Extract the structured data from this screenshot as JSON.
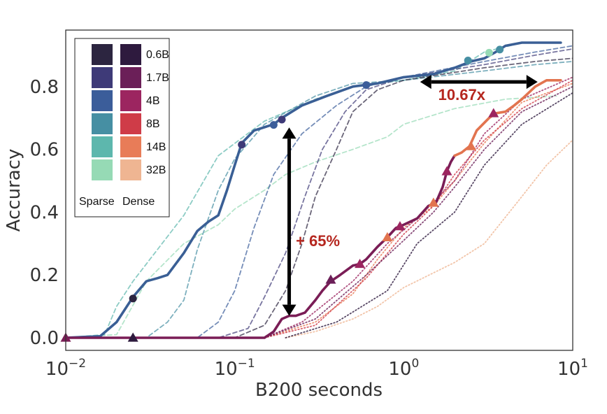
{
  "chart_data": {
    "type": "line",
    "xlabel": "B200 seconds",
    "ylabel": "Accuracy",
    "xscale": "log",
    "xlim": [
      0.01,
      10
    ],
    "ylim": [
      -0.04,
      0.98
    ],
    "xticks": [
      {
        "v": 0.01,
        "base": "10",
        "exp": "−2"
      },
      {
        "v": 0.1,
        "base": "10",
        "exp": "−1"
      },
      {
        "v": 1,
        "base": "10",
        "exp": "0"
      },
      {
        "v": 10,
        "base": "10",
        "exp": "1"
      }
    ],
    "yticks": [
      {
        "v": 0,
        "label": "0.0"
      },
      {
        "v": 0.2,
        "label": "0.2"
      },
      {
        "v": 0.4,
        "label": "0.4"
      },
      {
        "v": 0.6,
        "label": "0.6"
      },
      {
        "v": 0.8,
        "label": "0.8"
      }
    ],
    "grid": false,
    "legend": {
      "placement": "top-left",
      "sizes": [
        "0.6B",
        "1.7B",
        "4B",
        "8B",
        "14B",
        "32B"
      ],
      "sparse_label": "Sparse",
      "dense_label": "Dense",
      "sparse_colors": [
        "#2c2540",
        "#3e3a78",
        "#3b5d9a",
        "#468fa3",
        "#5db7ad",
        "#96dab5"
      ],
      "dense_colors": [
        "#2e1a3e",
        "#6b1f58",
        "#9c2560",
        "#cf3c48",
        "#e87c58",
        "#efb592"
      ],
      "sparse_label_color": "#2e6aa8",
      "dense_label_color": "#b5271f"
    },
    "series": [
      {
        "group": "sparse",
        "style": "dashed",
        "color": "#96dab5",
        "points": [
          [
            0.01,
            0
          ],
          [
            0.02,
            0.01
          ],
          [
            0.03,
            0.18
          ],
          [
            0.05,
            0.3
          ],
          [
            0.08,
            0.36
          ],
          [
            0.1,
            0.41
          ],
          [
            0.15,
            0.47
          ],
          [
            0.2,
            0.52
          ],
          [
            0.3,
            0.56
          ],
          [
            0.5,
            0.6
          ],
          [
            0.8,
            0.64
          ],
          [
            1,
            0.68
          ],
          [
            2,
            0.73
          ],
          [
            4,
            0.76
          ],
          [
            8,
            0.77
          ]
        ]
      },
      {
        "group": "sparse",
        "style": "dashed",
        "color": "#5db7ad",
        "points": [
          [
            0.01,
            0
          ],
          [
            0.017,
            0.01
          ],
          [
            0.02,
            0.1
          ],
          [
            0.025,
            0.18
          ],
          [
            0.05,
            0.39
          ],
          [
            0.08,
            0.58
          ],
          [
            0.15,
            0.69
          ],
          [
            0.3,
            0.76
          ],
          [
            0.5,
            0.8
          ],
          [
            1,
            0.82
          ],
          [
            2,
            0.85
          ],
          [
            3,
            0.91
          ],
          [
            5,
            0.94
          ],
          [
            8,
            0.94
          ]
        ]
      },
      {
        "group": "sparse",
        "style": "dashed",
        "color": "#468fa3",
        "points": [
          [
            0.01,
            0
          ],
          [
            0.03,
            0
          ],
          [
            0.04,
            0.05
          ],
          [
            0.05,
            0.12
          ],
          [
            0.06,
            0.28
          ],
          [
            0.08,
            0.47
          ],
          [
            0.1,
            0.57
          ],
          [
            0.15,
            0.68
          ],
          [
            0.3,
            0.77
          ],
          [
            0.5,
            0.81
          ],
          [
            1,
            0.82
          ],
          [
            3,
            0.85
          ],
          [
            6,
            0.87
          ],
          [
            10,
            0.88
          ]
        ]
      },
      {
        "group": "sparse",
        "style": "dashed",
        "color": "#3b5d9a",
        "points": [
          [
            0.01,
            0
          ],
          [
            0.06,
            0
          ],
          [
            0.08,
            0.05
          ],
          [
            0.1,
            0.15
          ],
          [
            0.13,
            0.35
          ],
          [
            0.17,
            0.52
          ],
          [
            0.25,
            0.65
          ],
          [
            0.4,
            0.74
          ],
          [
            0.6,
            0.8
          ],
          [
            1,
            0.83
          ],
          [
            3,
            0.88
          ],
          [
            6,
            0.91
          ],
          [
            10,
            0.93
          ]
        ]
      },
      {
        "group": "sparse",
        "style": "dashed",
        "color": "#3e3a78",
        "points": [
          [
            0.01,
            0
          ],
          [
            0.08,
            0
          ],
          [
            0.12,
            0.03
          ],
          [
            0.15,
            0.13
          ],
          [
            0.2,
            0.27
          ],
          [
            0.26,
            0.45
          ],
          [
            0.33,
            0.6
          ],
          [
            0.45,
            0.72
          ],
          [
            0.6,
            0.79
          ],
          [
            1,
            0.83
          ],
          [
            3,
            0.87
          ],
          [
            6,
            0.9
          ],
          [
            10,
            0.92
          ]
        ]
      },
      {
        "group": "sparse",
        "style": "dashed",
        "color": "#2c2540",
        "points": [
          [
            0.01,
            0
          ],
          [
            0.1,
            0
          ],
          [
            0.15,
            0.04
          ],
          [
            0.2,
            0.15
          ],
          [
            0.25,
            0.3
          ],
          [
            0.3,
            0.45
          ],
          [
            0.4,
            0.6
          ],
          [
            0.5,
            0.72
          ],
          [
            0.7,
            0.79
          ],
          [
            1,
            0.82
          ],
          [
            3,
            0.86
          ],
          [
            6,
            0.88
          ],
          [
            10,
            0.89
          ]
        ]
      },
      {
        "group": "sparse",
        "style": "solid",
        "color": "#3a5f95",
        "points": [
          [
            0.01,
            0
          ],
          [
            0.016,
            0.005
          ],
          [
            0.02,
            0.05
          ],
          [
            0.025,
            0.13
          ],
          [
            0.03,
            0.18
          ],
          [
            0.035,
            0.19
          ],
          [
            0.04,
            0.2
          ],
          [
            0.05,
            0.27
          ],
          [
            0.06,
            0.34
          ],
          [
            0.07,
            0.37
          ],
          [
            0.08,
            0.39
          ],
          [
            0.09,
            0.47
          ],
          [
            0.1,
            0.55
          ],
          [
            0.11,
            0.62
          ],
          [
            0.13,
            0.66
          ],
          [
            0.17,
            0.68
          ],
          [
            0.19,
            0.7
          ],
          [
            0.25,
            0.74
          ],
          [
            0.35,
            0.77
          ],
          [
            0.5,
            0.8
          ],
          [
            0.7,
            0.81
          ],
          [
            1,
            0.83
          ],
          [
            1.5,
            0.84
          ],
          [
            2,
            0.86
          ],
          [
            2.5,
            0.88
          ],
          [
            3,
            0.89
          ],
          [
            3.5,
            0.91
          ],
          [
            4,
            0.93
          ],
          [
            5,
            0.94
          ],
          [
            8.5,
            0.94
          ]
        ]
      },
      {
        "group": "dense",
        "style": "dotted",
        "color": "#efb592",
        "points": [
          [
            0.2,
            0
          ],
          [
            0.3,
            0.02
          ],
          [
            0.5,
            0.06
          ],
          [
            0.7,
            0.1
          ],
          [
            1,
            0.16
          ],
          [
            2,
            0.24
          ],
          [
            3,
            0.3
          ],
          [
            5,
            0.45
          ],
          [
            7,
            0.55
          ],
          [
            10,
            0.63
          ]
        ]
      },
      {
        "group": "dense",
        "style": "dotted",
        "color": "#e87c58",
        "points": [
          [
            0.15,
            0
          ],
          [
            0.3,
            0.05
          ],
          [
            0.5,
            0.14
          ],
          [
            0.7,
            0.25
          ],
          [
            1,
            0.35
          ],
          [
            1.5,
            0.42
          ],
          [
            2,
            0.5
          ],
          [
            3,
            0.62
          ],
          [
            5,
            0.75
          ],
          [
            10,
            0.81
          ]
        ]
      },
      {
        "group": "dense",
        "style": "dotted",
        "color": "#cf3c48",
        "points": [
          [
            0.15,
            0
          ],
          [
            0.3,
            0.04
          ],
          [
            0.6,
            0.19
          ],
          [
            1,
            0.33
          ],
          [
            1.5,
            0.42
          ],
          [
            2,
            0.52
          ],
          [
            3,
            0.63
          ],
          [
            5,
            0.73
          ],
          [
            10,
            0.82
          ]
        ]
      },
      {
        "group": "dense",
        "style": "dotted",
        "color": "#9c2560",
        "points": [
          [
            0.15,
            0
          ],
          [
            0.25,
            0.05
          ],
          [
            0.5,
            0.18
          ],
          [
            0.8,
            0.3
          ],
          [
            1.2,
            0.38
          ],
          [
            2,
            0.5
          ],
          [
            3,
            0.65
          ],
          [
            5,
            0.76
          ],
          [
            10,
            0.83
          ]
        ]
      },
      {
        "group": "dense",
        "style": "dotted",
        "color": "#6b1f58",
        "points": [
          [
            0.15,
            0
          ],
          [
            0.3,
            0.06
          ],
          [
            0.6,
            0.2
          ],
          [
            1,
            0.31
          ],
          [
            1.5,
            0.4
          ],
          [
            2,
            0.48
          ],
          [
            3,
            0.6
          ],
          [
            5,
            0.72
          ],
          [
            10,
            0.8
          ]
        ]
      },
      {
        "group": "dense",
        "style": "dotted",
        "color": "#2e1a3e",
        "points": [
          [
            0.2,
            0
          ],
          [
            0.4,
            0.05
          ],
          [
            0.8,
            0.15
          ],
          [
            1.2,
            0.3
          ],
          [
            2,
            0.4
          ],
          [
            3,
            0.55
          ],
          [
            5,
            0.68
          ],
          [
            10,
            0.78
          ]
        ]
      },
      {
        "group": "dense",
        "style": "solid",
        "color": "#7a1d56",
        "points": [
          [
            0.01,
            0
          ],
          [
            0.15,
            0
          ],
          [
            0.17,
            0.02
          ],
          [
            0.19,
            0.06
          ],
          [
            0.21,
            0.07
          ],
          [
            0.23,
            0.07
          ],
          [
            0.26,
            0.08
          ],
          [
            0.3,
            0.12
          ],
          [
            0.33,
            0.15
          ],
          [
            0.37,
            0.18
          ],
          [
            0.42,
            0.2
          ],
          [
            0.5,
            0.23
          ],
          [
            0.55,
            0.235
          ],
          [
            0.6,
            0.25
          ],
          [
            0.7,
            0.29
          ],
          [
            0.8,
            0.32
          ],
          [
            0.9,
            0.35
          ],
          [
            1.0,
            0.36
          ],
          [
            1.2,
            0.38
          ],
          [
            1.4,
            0.42
          ],
          [
            1.55,
            0.43
          ],
          [
            1.7,
            0.48
          ],
          [
            1.8,
            0.53
          ],
          [
            1.9,
            0.56
          ],
          [
            2.0,
            0.58
          ]
        ]
      },
      {
        "group": "dense",
        "style": "solid",
        "color": "#e2744f",
        "points": [
          [
            2.0,
            0.58
          ],
          [
            2.2,
            0.59
          ],
          [
            2.45,
            0.61
          ],
          [
            2.7,
            0.66
          ],
          [
            3.2,
            0.7
          ],
          [
            3.5,
            0.715
          ],
          [
            4,
            0.72
          ],
          [
            4.5,
            0.74
          ],
          [
            5,
            0.76
          ],
          [
            6,
            0.8
          ],
          [
            7,
            0.82
          ],
          [
            8.5,
            0.82
          ]
        ]
      }
    ],
    "markers": [
      {
        "shape": "circle",
        "color": "#2c2540",
        "x": 0.025,
        "y": 0.125
      },
      {
        "shape": "circle",
        "color": "#3e3a78",
        "x": 0.11,
        "y": 0.615
      },
      {
        "shape": "circle",
        "color": "#3e3a78",
        "x": 0.19,
        "y": 0.695
      },
      {
        "shape": "circle",
        "color": "#3b5d9a",
        "x": 0.17,
        "y": 0.678
      },
      {
        "shape": "circle",
        "color": "#3b5d9a",
        "x": 0.6,
        "y": 0.805
      },
      {
        "shape": "circle",
        "color": "#468fa3",
        "x": 2.4,
        "y": 0.883
      },
      {
        "shape": "circle",
        "color": "#468fa3",
        "x": 3.7,
        "y": 0.918
      },
      {
        "shape": "circle",
        "color": "#96dab5",
        "x": 3.2,
        "y": 0.908
      },
      {
        "shape": "triangle",
        "color": "#7a1d56",
        "x": 0.01,
        "y": 0
      },
      {
        "shape": "triangle",
        "color": "#2e1a3e",
        "x": 0.025,
        "y": 0
      },
      {
        "shape": "triangle",
        "color": "#6b1f58",
        "x": 0.37,
        "y": 0.185
      },
      {
        "shape": "triangle",
        "color": "#9c2560",
        "x": 0.55,
        "y": 0.235
      },
      {
        "shape": "triangle",
        "color": "#9c2560",
        "x": 0.95,
        "y": 0.355
      },
      {
        "shape": "triangle",
        "color": "#e2744f",
        "x": 0.8,
        "y": 0.32
      },
      {
        "shape": "triangle",
        "color": "#e2744f",
        "x": 1.5,
        "y": 0.43
      },
      {
        "shape": "triangle",
        "color": "#e2744f",
        "x": 2.5,
        "y": 0.61
      },
      {
        "shape": "triangle",
        "color": "#9c2560",
        "x": 1.8,
        "y": 0.53
      },
      {
        "shape": "triangle",
        "color": "#9c2560",
        "x": 3.4,
        "y": 0.715
      }
    ],
    "annotations": [
      {
        "type": "vertical-double-arrow",
        "x": 0.21,
        "y1": 0.07,
        "y2": 0.67,
        "label": "+ 65%",
        "label_x": 0.23,
        "label_y": 0.31,
        "color": "#b5271f"
      },
      {
        "type": "horizontal-double-arrow",
        "y": 0.815,
        "x1": 1.25,
        "x2": 6.2,
        "label": "10.67x",
        "label_x": 1.6,
        "label_y": 0.775,
        "color": "#b5271f"
      }
    ]
  }
}
